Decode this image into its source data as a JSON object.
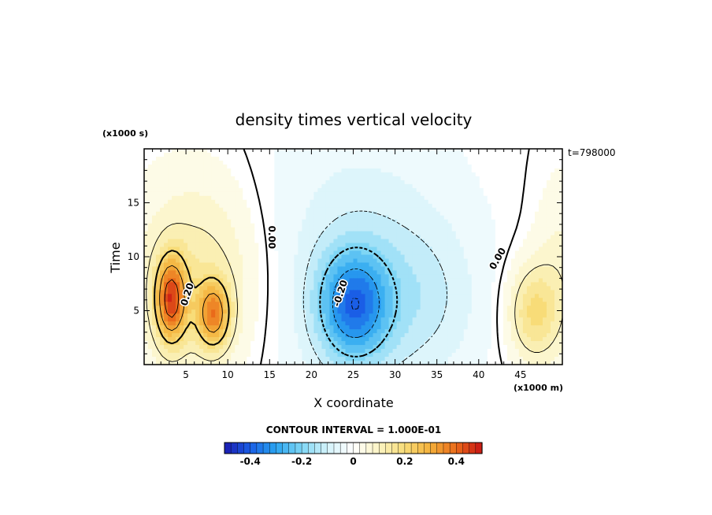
{
  "chart_data": {
    "type": "heatmap",
    "title": "density times vertical velocity",
    "xlabel": "X coordinate",
    "ylabel": "Time",
    "x_units": "(x1000 m)",
    "y_units": "(x1000 s)",
    "timestamp": "t=798000",
    "xlim": [
      0,
      50
    ],
    "ylim": [
      0,
      20
    ],
    "x_ticks": [
      5,
      10,
      15,
      20,
      25,
      30,
      35,
      40,
      45
    ],
    "y_ticks": [
      5,
      10,
      15
    ],
    "contour_interval_text": "CONTOUR INTERVAL = 1.000E-01",
    "contour_interval": 0.1,
    "contour_labels": [
      {
        "text": "0.20",
        "x": 5.2,
        "y": 6.5,
        "rotate": -72
      },
      {
        "text": "0.00",
        "x": 15.2,
        "y": 11.8,
        "rotate": 90
      },
      {
        "text": "-0.20",
        "x": 23.5,
        "y": 6.6,
        "rotate": -72
      },
      {
        "text": "0.00",
        "x": 42.3,
        "y": 9.8,
        "rotate": -60
      }
    ],
    "color_range": [
      -0.5,
      0.5
    ],
    "colorbar_ticks": [
      {
        "value": -0.4,
        "label": "-0.4"
      },
      {
        "value": -0.2,
        "label": "-0.2"
      },
      {
        "value": 0,
        "label": "0"
      },
      {
        "value": 0.2,
        "label": "0.2"
      },
      {
        "value": 0.4,
        "label": "0.4"
      }
    ],
    "features": [
      {
        "name": "updraft-core-a",
        "x": 3.2,
        "y": 6.0,
        "amplitude": 0.36,
        "sx": 1.3,
        "sy": 2.8
      },
      {
        "name": "updraft-core-b",
        "x": 8.3,
        "y": 4.6,
        "amplitude": 0.28,
        "sx": 1.4,
        "sy": 2.2
      },
      {
        "name": "updraft-broad",
        "x": 6.5,
        "y": 8.0,
        "amplitude": 0.14,
        "sx": 5.5,
        "sy": 6.5
      },
      {
        "name": "downdraft-core",
        "x": 25.0,
        "y": 5.5,
        "amplitude": -0.3,
        "sx": 3.0,
        "sy": 3.6
      },
      {
        "name": "downdraft-broad",
        "x": 25.5,
        "y": 9.0,
        "amplitude": -0.09,
        "sx": 9.0,
        "sy": 10.0
      },
      {
        "name": "downdraft-fringe",
        "x": 33.0,
        "y": 6.0,
        "amplitude": -0.07,
        "sx": 5.0,
        "sy": 5.0
      },
      {
        "name": "updraft-right",
        "x": 46.5,
        "y": 4.8,
        "amplitude": 0.18,
        "sx": 2.2,
        "sy": 3.2
      },
      {
        "name": "updraft-right-edge",
        "x": 50.0,
        "y": 9.0,
        "amplitude": 0.07,
        "sx": 2.5,
        "sy": 6.0
      }
    ],
    "colors": {
      "stops": [
        "#1b1bb0",
        "#1a5ee6",
        "#2aa5f0",
        "#7fd6f5",
        "#d4f2fa",
        "#ffffff",
        "#fbf4c2",
        "#f8dc78",
        "#f4b03a",
        "#ea6a1a",
        "#c81414"
      ],
      "zero_line": "#000000",
      "negative_line": "#000000",
      "frame": "#000000"
    }
  }
}
